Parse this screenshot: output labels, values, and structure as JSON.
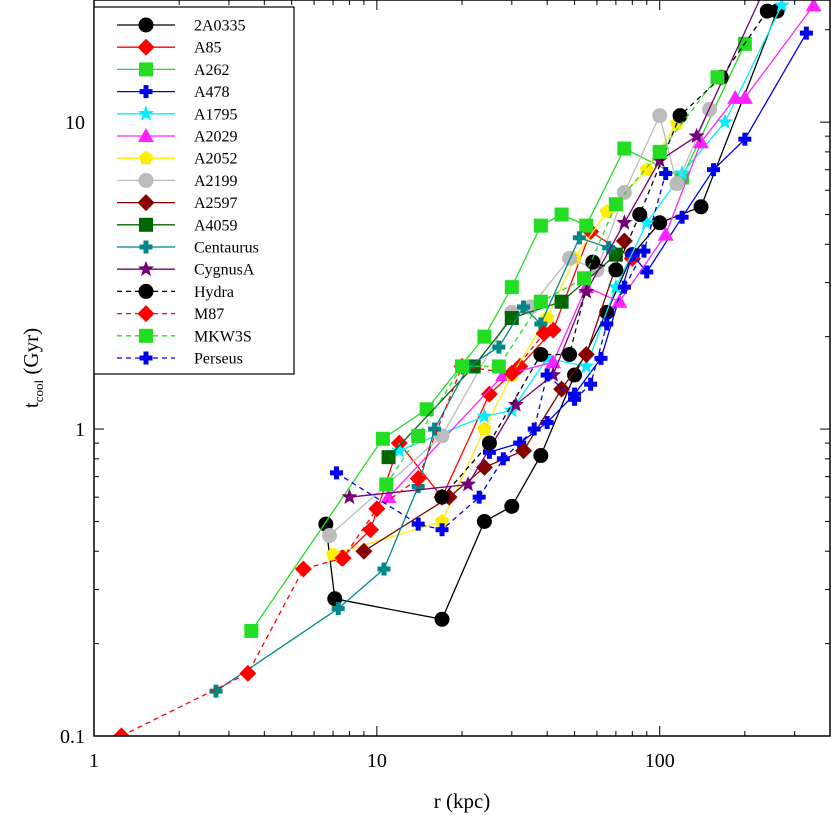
{
  "chart_data": {
    "type": "line",
    "xscale": "log",
    "yscale": "log",
    "xlim": [
      1,
      400
    ],
    "ylim": [
      0.1,
      25
    ],
    "x_ticks": [
      1,
      10,
      100
    ],
    "x_tick_labels": [
      "1",
      "10",
      "100"
    ],
    "y_ticks": [
      0.1,
      1,
      10
    ],
    "y_tick_labels": [
      "0.1",
      "1",
      "10"
    ],
    "xlabel": "r (kpc)",
    "ylabel_main": "t",
    "ylabel_sub": "cool",
    "ylabel_rest": " (Gyr)",
    "legend_position": "top-left",
    "grid": false,
    "series": [
      {
        "name": "2A0335",
        "color": "#000000",
        "marker": "circle",
        "dash": false,
        "x": [
          6.6,
          7.1,
          17,
          24,
          30,
          38,
          50,
          65,
          80,
          100,
          140,
          260
        ],
        "y": [
          0.49,
          0.28,
          0.24,
          0.5,
          0.56,
          0.82,
          1.5,
          2.4,
          3.7,
          4.7,
          5.3,
          23
        ]
      },
      {
        "name": "A85",
        "color": "#ff0000",
        "marker": "diamond",
        "dash": false,
        "x": [
          7.5,
          9.5,
          12,
          17,
          25,
          32,
          42,
          57,
          80
        ],
        "y": [
          0.38,
          0.47,
          0.9,
          0.6,
          1.3,
          1.6,
          2.1,
          4.4,
          3.6
        ]
      },
      {
        "name": "A262",
        "color": "#22dd22",
        "marker": "square",
        "dash": false,
        "x": [
          3.6,
          10.5,
          15,
          24,
          30,
          38,
          45,
          55,
          75,
          120,
          200
        ],
        "y": [
          0.22,
          0.93,
          1.16,
          2.0,
          2.9,
          4.6,
          5.0,
          4.6,
          8.2,
          6.6,
          18
        ]
      },
      {
        "name": "A478",
        "color": "#0000ee",
        "marker": "plus",
        "dash": false,
        "x": [
          25,
          32,
          40,
          50,
          62,
          80,
          90,
          120,
          155,
          200,
          330
        ],
        "y": [
          0.84,
          0.9,
          1.05,
          1.3,
          1.7,
          3.7,
          3.25,
          4.9,
          7.0,
          8.8,
          19.5
        ]
      },
      {
        "name": "A1795",
        "color": "#00eeff",
        "marker": "star",
        "dash": false,
        "x": [
          12,
          24,
          30,
          40,
          55,
          70,
          90,
          120,
          170,
          270
        ],
        "y": [
          0.85,
          1.1,
          1.15,
          1.7,
          1.6,
          2.9,
          4.7,
          6.8,
          10,
          24
        ]
      },
      {
        "name": "A2029",
        "color": "#ff22ff",
        "marker": "triangle",
        "dash": false,
        "x": [
          11,
          28,
          42,
          55,
          72,
          105,
          140,
          185,
          200,
          350
        ],
        "y": [
          0.6,
          1.5,
          1.65,
          2.9,
          2.6,
          4.3,
          8.6,
          12,
          12,
          24
        ]
      },
      {
        "name": "A2052",
        "color": "#ffee00",
        "marker": "pentagon",
        "dash": false,
        "x": [
          7,
          17,
          24,
          30,
          40,
          50,
          65,
          90,
          115
        ],
        "y": [
          0.39,
          0.5,
          1.0,
          1.5,
          2.3,
          3.6,
          5.1,
          7.0,
          9.9
        ]
      },
      {
        "name": "A2199",
        "color": "#bbbbbb",
        "marker": "circle",
        "dash": false,
        "x": [
          6.8,
          17,
          30,
          35,
          48,
          60,
          75,
          100,
          115,
          150
        ],
        "y": [
          0.45,
          0.95,
          2.4,
          2.5,
          3.6,
          3.3,
          5.9,
          10.5,
          6.3,
          11
        ]
      },
      {
        "name": "A2597",
        "color": "#880000",
        "marker": "diamond",
        "dash": false,
        "x": [
          9,
          18,
          24,
          33,
          45,
          55,
          75
        ],
        "y": [
          0.4,
          0.6,
          0.75,
          0.85,
          1.35,
          1.75,
          4.1
        ]
      },
      {
        "name": "A4059",
        "color": "#006600",
        "marker": "square",
        "dash": false,
        "x": [
          11,
          22,
          30,
          45,
          70
        ],
        "y": [
          0.81,
          1.6,
          2.3,
          2.6,
          3.7
        ]
      },
      {
        "name": "Centaurus",
        "color": "#008888",
        "marker": "plus",
        "dash": false,
        "x": [
          2.7,
          7.3,
          10.6,
          14,
          16,
          21,
          27,
          33,
          38,
          52,
          66
        ],
        "y": [
          0.14,
          0.26,
          0.35,
          0.65,
          1.0,
          1.6,
          1.85,
          2.5,
          2.2,
          4.2,
          3.9
        ]
      },
      {
        "name": "CygnusA",
        "color": "#770077",
        "marker": "star",
        "dash": false,
        "x": [
          8,
          21,
          31,
          42,
          55,
          75,
          100,
          135,
          230
        ],
        "y": [
          0.6,
          0.66,
          1.2,
          1.5,
          2.8,
          4.7,
          7.5,
          9.0,
          26
        ]
      },
      {
        "name": "Hydra",
        "color": "#000000",
        "marker": "circle",
        "dash": true,
        "x": [
          17,
          25,
          38,
          48,
          58,
          70,
          85,
          118,
          165,
          240
        ],
        "y": [
          0.6,
          0.9,
          1.75,
          1.75,
          3.5,
          3.3,
          5.0,
          10.5,
          14,
          23
        ]
      },
      {
        "name": "M87",
        "color": "#ff0000",
        "marker": "diamond",
        "dash": true,
        "x": [
          1.25,
          3.5,
          5.5,
          7.6,
          10,
          14,
          20,
          30,
          39
        ],
        "y": [
          0.1,
          0.16,
          0.35,
          0.38,
          0.55,
          0.69,
          1.6,
          1.52,
          2.05
        ]
      },
      {
        "name": "MKW3S",
        "color": "#22dd22",
        "marker": "square",
        "dash": true,
        "x": [
          10.8,
          14,
          20,
          27,
          38,
          54,
          70,
          100,
          160
        ],
        "y": [
          0.66,
          0.95,
          1.6,
          1.6,
          2.6,
          3.1,
          5.4,
          8.0,
          14
        ]
      },
      {
        "name": "Perseus",
        "color": "#0000ee",
        "marker": "plus",
        "dash": true,
        "x": [
          7.2,
          14,
          17,
          23,
          28,
          36,
          40,
          50,
          57,
          65,
          75,
          88,
          105
        ],
        "y": [
          0.72,
          0.49,
          0.47,
          0.6,
          0.8,
          1.0,
          1.5,
          1.25,
          1.4,
          2.2,
          2.9,
          3.8,
          6.8
        ]
      }
    ]
  }
}
